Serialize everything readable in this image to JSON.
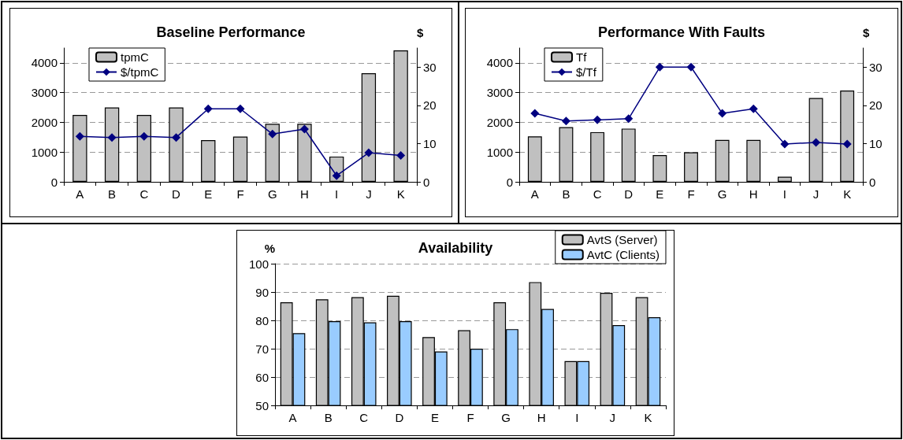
{
  "chart_data": [
    {
      "type": "bar",
      "title": "Baseline Performance",
      "y2label": "$",
      "categories": [
        "A",
        "B",
        "C",
        "D",
        "E",
        "F",
        "G",
        "H",
        "I",
        "J",
        "K"
      ],
      "series": [
        {
          "name": "tpmC",
          "type": "bar",
          "color": "#c0c0c0",
          "values": [
            2250,
            2500,
            2250,
            2500,
            1400,
            1520,
            1950,
            1950,
            850,
            3650,
            4420
          ]
        },
        {
          "name": "$/tpmC",
          "type": "line",
          "axis": "y2",
          "color": "#000080",
          "values": [
            11.9,
            11.6,
            11.9,
            11.6,
            19.1,
            19.1,
            12.5,
            13.8,
            1.6,
            7.6,
            6.9
          ]
        }
      ],
      "ylim": [
        0,
        4500
      ],
      "yticks": [
        0,
        1000,
        2000,
        3000,
        4000
      ],
      "y2lim": [
        0,
        35
      ],
      "y2ticks": [
        0,
        10,
        20,
        30
      ],
      "grid": "y",
      "legend": "top left",
      "marker": "diamond",
      "line_style": "solid"
    },
    {
      "type": "bar",
      "title": "Performance With Faults",
      "y2label": "$",
      "categories": [
        "A",
        "B",
        "C",
        "D",
        "E",
        "F",
        "G",
        "H",
        "I",
        "J",
        "K"
      ],
      "series": [
        {
          "name": "Tf",
          "type": "bar",
          "color": "#c0c0c0",
          "values": [
            1530,
            1840,
            1670,
            1790,
            900,
            990,
            1410,
            1410,
            170,
            2820,
            3070
          ]
        },
        {
          "name": "$/Tf",
          "type": "line",
          "axis": "y2",
          "color": "#000080",
          "values": [
            17.9,
            15.9,
            16.2,
            16.5,
            30,
            30,
            17.9,
            19.1,
            9.9,
            10.3,
            9.9
          ]
        }
      ],
      "ylim": [
        0,
        4500
      ],
      "yticks": [
        0,
        1000,
        2000,
        3000,
        4000
      ],
      "y2lim": [
        0,
        35
      ],
      "y2ticks": [
        0,
        10,
        20,
        30
      ],
      "grid": "y",
      "legend": "top left",
      "marker": "diamond",
      "line_style": "solid"
    },
    {
      "type": "bar",
      "title": "Availability",
      "ylabel": "%",
      "categories": [
        "A",
        "B",
        "C",
        "D",
        "E",
        "F",
        "G",
        "H",
        "I",
        "J",
        "K"
      ],
      "series": [
        {
          "name": "AvtS (Server)",
          "color": "#c0c0c0",
          "values": [
            86.4,
            87.4,
            88.2,
            88.7,
            74.1,
            76.5,
            86.4,
            93.5,
            65.6,
            89.7,
            88.2
          ]
        },
        {
          "name": "AvtC (Clients)",
          "color": "#99ccff",
          "values": [
            75.5,
            79.7,
            79.3,
            79.7,
            69.0,
            70.0,
            76.9,
            84.0,
            65.6,
            78.3,
            81.1
          ]
        }
      ],
      "ylim": [
        50,
        100
      ],
      "yticks": [
        50,
        60,
        70,
        80,
        90,
        100
      ],
      "grid": "y",
      "legend": "top right"
    }
  ]
}
